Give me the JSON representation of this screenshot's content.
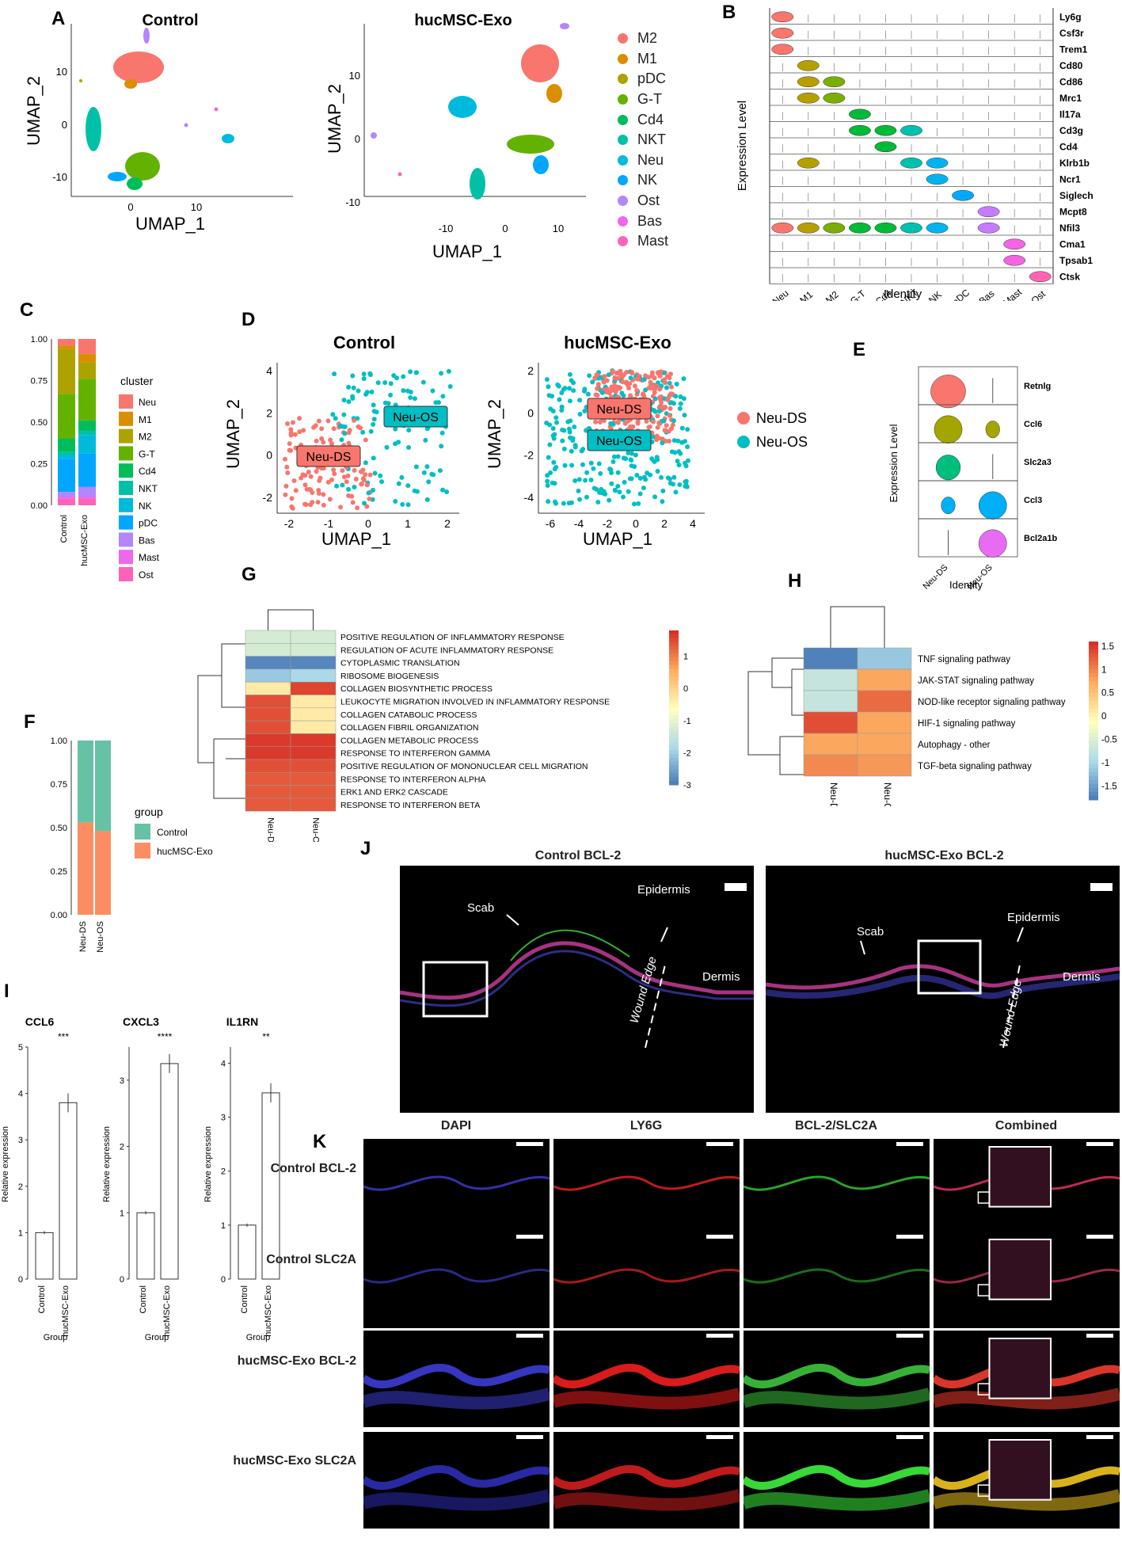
{
  "panels": {
    "A": "A",
    "B": "B",
    "C": "C",
    "D": "D",
    "E": "E",
    "F": "F",
    "G": "G",
    "H": "H",
    "I": "I",
    "J": "J",
    "K": "K"
  },
  "umapA": {
    "titles": [
      "Control",
      "hucMSC-Exo"
    ],
    "xlabel": "UMAP_1",
    "ylabel": "UMAP_2",
    "left_xticks": [
      "0",
      "10"
    ],
    "left_yticks": [
      "10",
      "0",
      "-10"
    ],
    "right_xticks": [
      "-10",
      "0",
      "10"
    ],
    "right_yticks": [
      "10",
      "0",
      "-10"
    ],
    "legend": [
      {
        "name": "M2",
        "color": "#F8766D"
      },
      {
        "name": "M1",
        "color": "#DB8E00"
      },
      {
        "name": "pDC",
        "color": "#AEA200"
      },
      {
        "name": "G-T",
        "color": "#64B200"
      },
      {
        "name": "Cd4",
        "color": "#00BD5C"
      },
      {
        "name": "NKT",
        "color": "#00C1A7"
      },
      {
        "name": "Neu",
        "color": "#00BADE"
      },
      {
        "name": "NK",
        "color": "#00A6FF"
      },
      {
        "name": "Ost",
        "color": "#B385FF"
      },
      {
        "name": "Bas",
        "color": "#EF67EB"
      },
      {
        "name": "Mast",
        "color": "#FF63B6"
      }
    ]
  },
  "violinB": {
    "genes": [
      "Ly6g",
      "Csf3r",
      "Trem1",
      "Cd80",
      "Cd86",
      "Mrc1",
      "Il17a",
      "Cd3g",
      "Cd4",
      "Klrb1b",
      "Ncr1",
      "Siglech",
      "Mcpt8",
      "Nfil3",
      "Cma1",
      "Tpsab1",
      "Ctsk"
    ],
    "identities": [
      "Neu",
      "M1",
      "M2",
      "G-T",
      "Cd4",
      "NKT",
      "NK",
      "pDC",
      "Bas",
      "Mast",
      "Ost"
    ],
    "colors": [
      "#F8766D",
      "#B79F00",
      "#7CAE00",
      "#00BA38",
      "#00BA38",
      "#00C0AF",
      "#00B4F0",
      "#00A9FF",
      "#C77CFF",
      "#F564E3",
      "#FF64B0"
    ],
    "ylabel": "Expression Level",
    "xlabel": "Identity"
  },
  "barC": {
    "xlabels": [
      "Control",
      "hucMSC-Exo"
    ],
    "yticks": [
      "1.00",
      "0.75",
      "0.50",
      "0.25",
      "0.00"
    ],
    "legend_title": "cluster",
    "legend": [
      {
        "name": "Neu",
        "color": "#F8766D"
      },
      {
        "name": "M1",
        "color": "#DB8E00"
      },
      {
        "name": "M2",
        "color": "#AEA200"
      },
      {
        "name": "G-T",
        "color": "#64B200"
      },
      {
        "name": "Cd4",
        "color": "#00BD5C"
      },
      {
        "name": "NKT",
        "color": "#00C1A7"
      },
      {
        "name": "NK",
        "color": "#00BADE"
      },
      {
        "name": "pDC",
        "color": "#00A6FF"
      },
      {
        "name": "Bas",
        "color": "#B385FF"
      },
      {
        "name": "Mast",
        "color": "#EF67EB"
      },
      {
        "name": "Ost",
        "color": "#FF63B6"
      }
    ]
  },
  "umapD": {
    "titles": [
      "Control",
      "hucMSC-Exo"
    ],
    "xlabel": "UMAP_1",
    "ylabel": "UMAP_2",
    "left_xticks": [
      "-2",
      "-1",
      "0",
      "1",
      "2"
    ],
    "left_yticks": [
      "4",
      "2",
      "0",
      "-2"
    ],
    "right_xticks": [
      "-6",
      "-4",
      "-2",
      "0",
      "2",
      "4"
    ],
    "right_yticks": [
      "2",
      "0",
      "-2",
      "-4"
    ],
    "tags": [
      "Neu-DS",
      "Neu-OS"
    ],
    "legend": [
      {
        "name": "Neu-DS",
        "color": "#F8766D"
      },
      {
        "name": "Neu-OS",
        "color": "#00BFC4"
      }
    ]
  },
  "violinE": {
    "genes": [
      "Retnlg",
      "Ccl6",
      "Slc2a3",
      "Ccl3",
      "Bcl2a1b"
    ],
    "identities": [
      "Neu-DS",
      "Neu-OS"
    ],
    "ylabel": "Expression Level",
    "xlabel": "Identity"
  },
  "barF": {
    "xlabels": [
      "Neu-DS",
      "Neu-OS"
    ],
    "yticks": [
      "1.00",
      "0.75",
      "0.50",
      "0.25",
      "0.00"
    ],
    "legend_title": "group",
    "legend": [
      {
        "name": "Control",
        "color": "#66C2A5"
      },
      {
        "name": "hucMSC-Exo",
        "color": "#FC8D62"
      }
    ]
  },
  "heatG": {
    "rows": [
      "POSITIVE REGULATION OF INFLAMMATORY RESPONSE",
      "REGULATION OF ACUTE INFLAMMATORY RESPONSE",
      "CYTOPLASMIC TRANSLATION",
      "RIBOSOME BIOGENESIS",
      "COLLAGEN BIOSYNTHETIC PROCESS",
      "LEUKOCYTE MIGRATION INVOLVED IN INFLAMMATORY RESPONSE",
      "COLLAGEN CATABOLIC PROCESS",
      "COLLAGEN FIBRIL ORGANIZATION",
      "COLLAGEN METABOLIC PROCESS",
      "RESPONSE TO INTERFERON GAMMA",
      "POSITIVE REGULATION OF MONONUCLEAR CELL MIGRATION",
      "RESPONSE TO INTERFERON ALPHA",
      "ERK1 AND ERK2 CASCADE",
      "RESPONSE TO INTERFERON BETA"
    ],
    "cols": [
      "Neu-DS",
      "Neu-OS"
    ],
    "values": [
      [
        -1.2,
        -1.2
      ],
      [
        -1.2,
        -1.2
      ],
      [
        -2.8,
        -2.8
      ],
      [
        -2.0,
        -1.8
      ],
      [
        -0.3,
        1.6
      ],
      [
        1.5,
        -0.3
      ],
      [
        1.5,
        -0.3
      ],
      [
        1.5,
        -0.3
      ],
      [
        1.7,
        1.7
      ],
      [
        1.7,
        1.7
      ],
      [
        1.5,
        1.5
      ],
      [
        1.4,
        1.4
      ],
      [
        1.4,
        1.4
      ],
      [
        1.4,
        1.4
      ]
    ],
    "scale_ticks": [
      "1",
      "0",
      "-1",
      "-2",
      "-3"
    ]
  },
  "heatH": {
    "rows": [
      "TNF signaling pathway",
      "JAK-STAT signaling pathway",
      "NOD-like receptor signaling pathway",
      "HIF-1 signaling pathway",
      "Autophagy - other",
      "TGF-beta signaling pathway"
    ],
    "cols": [
      "Neu-DS",
      "Neu-OS"
    ],
    "values": [
      [
        -1.7,
        -1.1
      ],
      [
        -0.7,
        0.8
      ],
      [
        -0.7,
        1.2
      ],
      [
        1.4,
        0.8
      ],
      [
        0.8,
        0.8
      ],
      [
        1.0,
        0.9
      ]
    ],
    "scale_ticks": [
      "1.5",
      "1",
      "0.5",
      "0",
      "-0.5",
      "-1",
      "-1.5"
    ]
  },
  "barI": {
    "charts": [
      {
        "title": "CCL6",
        "stars": "***",
        "yticks": [
          "5",
          "4",
          "3",
          "2",
          "1",
          "0"
        ],
        "ymax": 5,
        "values": [
          1.0,
          3.8
        ]
      },
      {
        "title": "CXCL3",
        "stars": "****",
        "yticks": [
          "3",
          "2",
          "1",
          "0"
        ],
        "ymax": 3.5,
        "values": [
          1.0,
          3.25
        ]
      },
      {
        "title": "IL1RN",
        "stars": "**",
        "yticks": [
          "4",
          "3",
          "2",
          "1",
          "0"
        ],
        "ymax": 4.3,
        "values": [
          1.0,
          3.45
        ]
      }
    ],
    "xlabels": [
      "Control",
      "hucMSC-Exo"
    ],
    "ylabel": "Relative expression",
    "xlabel": "Group"
  },
  "panelJ": {
    "titles": [
      "Control BCL-2",
      "hucMSC-Exo BCL-2"
    ],
    "labels": {
      "scab": "Scab",
      "epidermis": "Epidermis",
      "dermis": "Dermis",
      "wound_edge": "Wound Edge"
    }
  },
  "panelK": {
    "columns": [
      "DAPI",
      "LY6G",
      "BCL-2/SLC2A",
      "Combined"
    ],
    "rows": [
      "Control BCL-2",
      "Control SLC2A",
      "hucMSC-Exo BCL-2",
      "hucMSC-Exo SLC2A"
    ]
  }
}
